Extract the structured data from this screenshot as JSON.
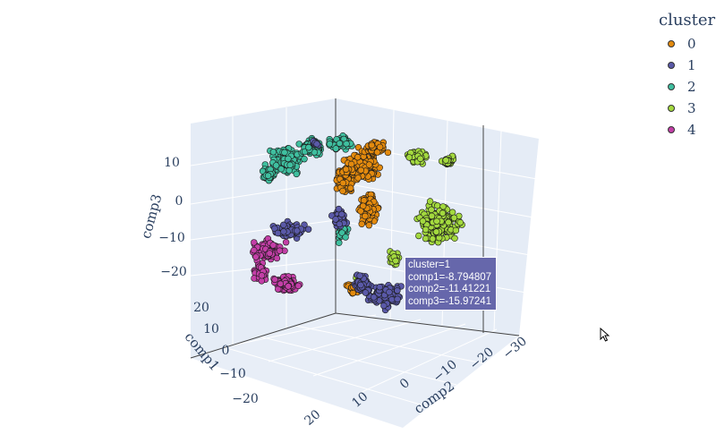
{
  "chart_data": {
    "type": "scatter3d",
    "axes": {
      "x": {
        "title": "comp1",
        "ticks": [
          "20",
          "10",
          "0",
          "−10",
          "−20"
        ]
      },
      "y": {
        "title": "comp2",
        "ticks": [
          "20",
          "10",
          "0",
          "−10",
          "−20",
          "−30"
        ]
      },
      "z": {
        "title": "comp3",
        "ticks": [
          "10",
          "0",
          "−10",
          "−20"
        ]
      }
    },
    "legend": {
      "title": "cluster",
      "placement": "top-right",
      "entries": [
        {
          "name": "0",
          "color": "#e38a0e"
        },
        {
          "name": "1",
          "color": "#5a59a8"
        },
        {
          "name": "2",
          "color": "#3fbf9f"
        },
        {
          "name": "3",
          "color": "#a3d93e"
        },
        {
          "name": "4",
          "color": "#c33fa7"
        }
      ]
    },
    "series": [
      {
        "name": "0",
        "color": "#e38a0e"
      },
      {
        "name": "1",
        "color": "#5a59a8"
      },
      {
        "name": "2",
        "color": "#3fbf9f"
      },
      {
        "name": "3",
        "color": "#a3d93e"
      },
      {
        "name": "4",
        "color": "#c33fa7"
      }
    ],
    "hover": {
      "lines": [
        "cluster=1",
        "comp1=-8.794807",
        "comp2=-11.41221",
        "comp3=-15.97241"
      ],
      "color": "#6667ab"
    },
    "scene_background": "#e5ecf6",
    "grid": true
  }
}
